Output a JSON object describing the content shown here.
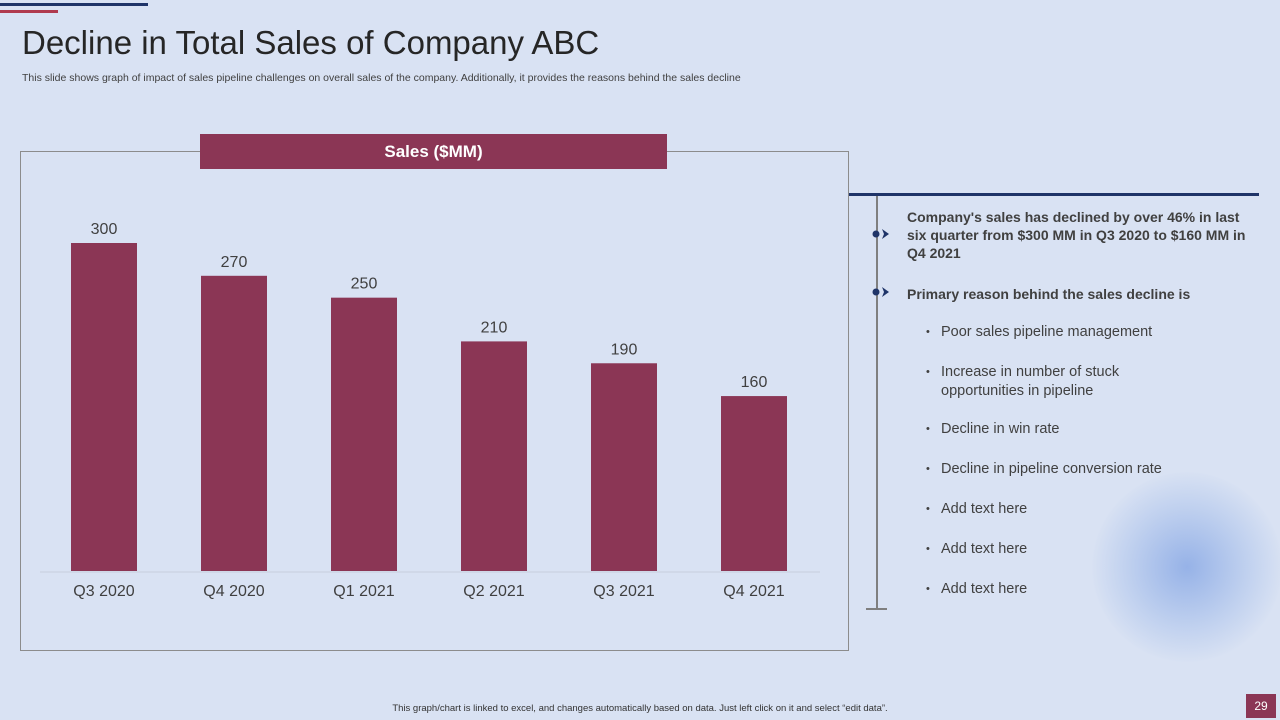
{
  "slide": {
    "title": "Decline in Total Sales of Company ABC",
    "subtitle": "This slide shows graph of impact of sales pipeline challenges on overall sales of the company. Additionally, it provides the reasons behind the sales decline",
    "footer": "This graph/chart is linked to excel, and changes automatically based on data. Just left click on it and select “edit data”.",
    "page_number": "29"
  },
  "chart_data": {
    "type": "bar",
    "title": "Sales ($MM)",
    "categories": [
      "Q3 2020",
      "Q4 2020",
      "Q1 2021",
      "Q2 2021",
      "Q3 2021",
      "Q4 2021"
    ],
    "values": [
      300,
      270,
      250,
      210,
      190,
      160
    ],
    "data_labels": [
      "300",
      "270",
      "250",
      "210",
      "190",
      "160"
    ],
    "xlabel": "",
    "ylabel": "",
    "ylim": [
      0,
      300
    ],
    "grid": false,
    "legend": "none",
    "bar_color": "#8b3655"
  },
  "insights": {
    "points": [
      "Company's sales has declined by over 46% in last six quarter from $300 MM in Q3 2020 to $160 MM in Q4 2021",
      "Primary reason behind the sales decline is"
    ],
    "bullets": [
      "Poor sales pipeline management",
      "Increase in number of stuck opportunities in pipeline",
      "Decline in win rate",
      "Decline in pipeline conversion rate",
      "Add text here",
      "Add text here",
      "Add text here"
    ],
    "bullet_char": "•"
  },
  "colors": {
    "background": "#d9e2f3",
    "bar": "#8b3655",
    "navy": "#1f3468",
    "text": "#404040"
  }
}
